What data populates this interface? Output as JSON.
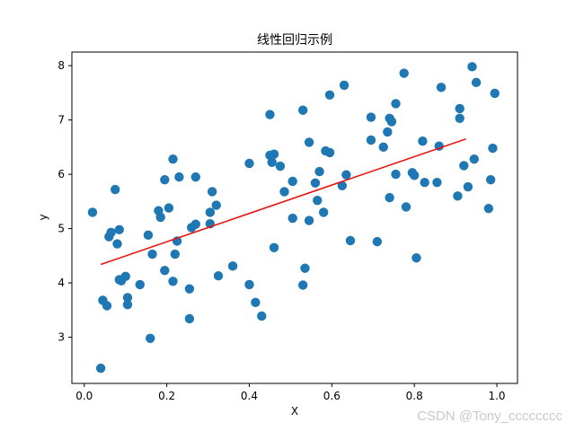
{
  "chart_data": {
    "type": "scatter",
    "title": "线性回归示例",
    "xlabel": "X",
    "ylabel": "y",
    "xlim": [
      -0.03,
      1.05
    ],
    "ylim": [
      2.15,
      8.25
    ],
    "xticks": [
      0.0,
      0.2,
      0.4,
      0.6,
      0.8,
      1.0
    ],
    "xtick_labels": [
      "0.0",
      "0.2",
      "0.4",
      "0.6",
      "0.8",
      "1.0"
    ],
    "yticks": [
      3,
      4,
      5,
      6,
      7,
      8
    ],
    "ytick_labels": [
      "3",
      "4",
      "5",
      "6",
      "7",
      "8"
    ],
    "grid": false,
    "point_color": "#1f77b4",
    "line_color": "#e8140e",
    "points": [
      [
        0.02,
        5.3
      ],
      [
        0.04,
        2.43
      ],
      [
        0.045,
        3.68
      ],
      [
        0.055,
        3.58
      ],
      [
        0.06,
        4.85
      ],
      [
        0.065,
        4.93
      ],
      [
        0.075,
        5.72
      ],
      [
        0.08,
        4.72
      ],
      [
        0.085,
        4.98
      ],
      [
        0.085,
        4.06
      ],
      [
        0.09,
        4.04
      ],
      [
        0.1,
        4.12
      ],
      [
        0.105,
        3.6
      ],
      [
        0.105,
        3.73
      ],
      [
        0.135,
        3.97
      ],
      [
        0.155,
        4.88
      ],
      [
        0.16,
        2.98
      ],
      [
        0.165,
        4.53
      ],
      [
        0.18,
        5.33
      ],
      [
        0.185,
        5.21
      ],
      [
        0.195,
        4.23
      ],
      [
        0.195,
        5.9
      ],
      [
        0.205,
        5.38
      ],
      [
        0.215,
        6.28
      ],
      [
        0.215,
        4.03
      ],
      [
        0.22,
        4.53
      ],
      [
        0.225,
        4.77
      ],
      [
        0.23,
        5.95
      ],
      [
        0.255,
        3.34
      ],
      [
        0.255,
        3.89
      ],
      [
        0.26,
        5.02
      ],
      [
        0.27,
        5.95
      ],
      [
        0.27,
        5.08
      ],
      [
        0.305,
        5.3
      ],
      [
        0.305,
        5.09
      ],
      [
        0.31,
        5.68
      ],
      [
        0.32,
        5.43
      ],
      [
        0.325,
        4.13
      ],
      [
        0.36,
        4.31
      ],
      [
        0.4,
        6.2
      ],
      [
        0.4,
        3.97
      ],
      [
        0.415,
        3.64
      ],
      [
        0.43,
        3.39
      ],
      [
        0.45,
        7.1
      ],
      [
        0.45,
        6.35
      ],
      [
        0.455,
        6.22
      ],
      [
        0.46,
        6.37
      ],
      [
        0.46,
        4.65
      ],
      [
        0.475,
        6.15
      ],
      [
        0.485,
        5.68
      ],
      [
        0.505,
        5.87
      ],
      [
        0.505,
        5.19
      ],
      [
        0.53,
        7.18
      ],
      [
        0.53,
        3.96
      ],
      [
        0.535,
        4.27
      ],
      [
        0.545,
        5.15
      ],
      [
        0.545,
        6.59
      ],
      [
        0.56,
        5.84
      ],
      [
        0.565,
        5.52
      ],
      [
        0.57,
        6.05
      ],
      [
        0.58,
        5.3
      ],
      [
        0.585,
        6.43
      ],
      [
        0.595,
        7.46
      ],
      [
        0.595,
        6.4
      ],
      [
        0.625,
        5.79
      ],
      [
        0.63,
        7.64
      ],
      [
        0.635,
        5.99
      ],
      [
        0.645,
        4.78
      ],
      [
        0.695,
        7.05
      ],
      [
        0.695,
        6.63
      ],
      [
        0.71,
        4.76
      ],
      [
        0.725,
        6.5
      ],
      [
        0.735,
        6.78
      ],
      [
        0.74,
        7.03
      ],
      [
        0.74,
        5.57
      ],
      [
        0.745,
        6.97
      ],
      [
        0.755,
        7.3
      ],
      [
        0.755,
        6.0
      ],
      [
        0.775,
        7.86
      ],
      [
        0.78,
        5.4
      ],
      [
        0.795,
        6.03
      ],
      [
        0.8,
        5.98
      ],
      [
        0.805,
        4.46
      ],
      [
        0.82,
        6.61
      ],
      [
        0.825,
        5.85
      ],
      [
        0.855,
        5.85
      ],
      [
        0.86,
        6.52
      ],
      [
        0.865,
        7.6
      ],
      [
        0.905,
        5.6
      ],
      [
        0.91,
        7.21
      ],
      [
        0.91,
        7.03
      ],
      [
        0.92,
        6.16
      ],
      [
        0.93,
        5.77
      ],
      [
        0.94,
        7.98
      ],
      [
        0.945,
        6.28
      ],
      [
        0.95,
        7.69
      ],
      [
        0.98,
        5.37
      ],
      [
        0.985,
        5.9
      ],
      [
        0.99,
        6.48
      ],
      [
        0.995,
        7.49
      ]
    ],
    "fit_line": {
      "x": [
        0.04,
        0.925
      ],
      "y": [
        4.34,
        6.65
      ]
    }
  },
  "watermark": "CSDN @Tony_cccccccc"
}
